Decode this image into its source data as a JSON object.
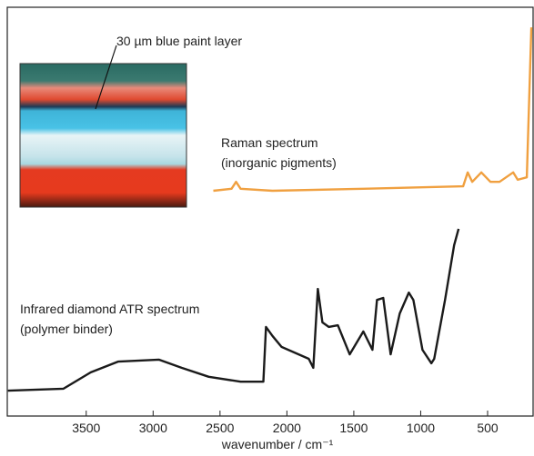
{
  "chart_data": {
    "type": "line",
    "xlabel": "wavenumber / cm⁻¹",
    "xlim": [
      4090,
      160
    ],
    "xticks": [
      3500,
      3000,
      2500,
      2000,
      1500,
      1000,
      500
    ],
    "ylim": [
      0,
      100
    ],
    "annotations": [
      {
        "lines": [
          "30 µm blue paint layer"
        ]
      },
      {
        "lines": [
          "Raman spectrum",
          "(inorganic pigments)"
        ]
      },
      {
        "lines": [
          "Infrared diamond ATR spectrum",
          "(polymer binder)"
        ]
      }
    ],
    "series": [
      {
        "color": "#f0a040",
        "x": [
          2550,
          2414,
          2380,
          2346,
          2108,
          1429,
          683,
          649,
          615,
          547,
          479,
          411,
          309,
          275,
          207,
          173
        ],
        "values": [
          55.1,
          55.6,
          57.3,
          55.6,
          55.1,
          55.6,
          56.2,
          59.6,
          57.3,
          59.6,
          57.3,
          57.3,
          59.6,
          57.8,
          58.4,
          95.1
        ]
      },
      {
        "color": "#1a1a1a",
        "x": [
          4085,
          3670,
          3466,
          3262,
          2957,
          2787,
          2584,
          2346,
          2176,
          2156,
          2108,
          2040,
          1837,
          1803,
          1769,
          1735,
          1687,
          1619,
          1531,
          1429,
          1361,
          1327,
          1280,
          1225,
          1157,
          1089,
          1055,
          987,
          920,
          899,
          818,
          750,
          717
        ],
        "values": [
          6.2,
          6.7,
          10.7,
          13.3,
          13.8,
          11.8,
          9.6,
          8.4,
          8.4,
          21.8,
          19.6,
          16.9,
          14,
          11.8,
          31.1,
          22.9,
          21.8,
          22.2,
          15.1,
          20.7,
          16.2,
          28.4,
          28.9,
          15.1,
          25.1,
          30.2,
          28.4,
          16.2,
          12.9,
          14,
          28.4,
          41.8,
          45.8
        ]
      }
    ]
  }
}
